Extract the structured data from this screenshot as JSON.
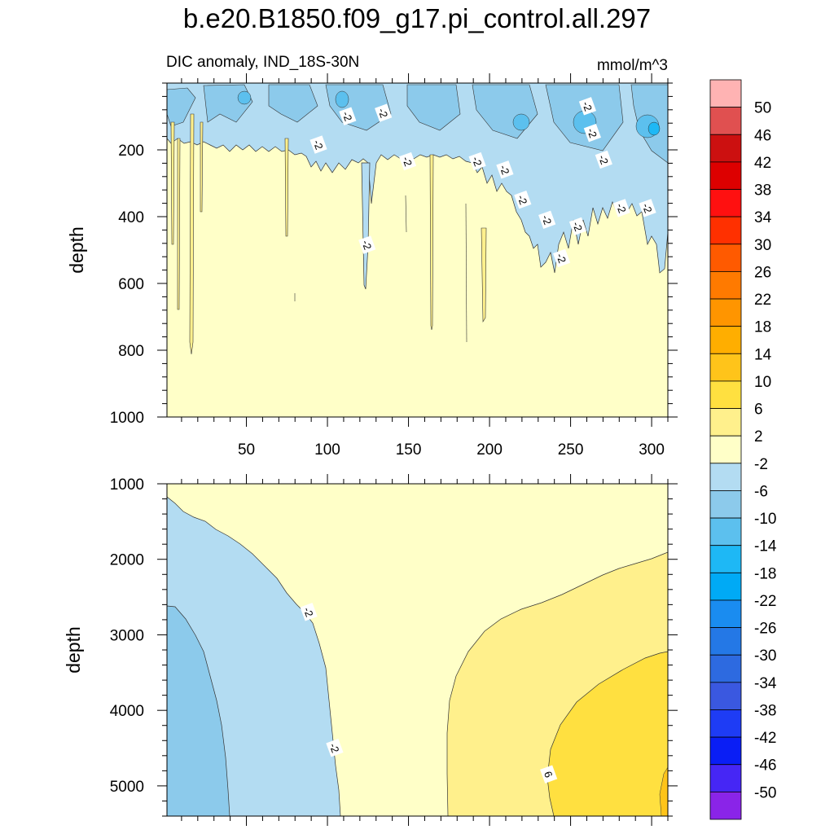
{
  "main_title": "b.e20.B1850.f09_g17.pi_control.all.297",
  "chart_data": [
    {
      "type": "contour",
      "panel": "upper",
      "left_title": "DIC anomaly, IND_18S-30N",
      "units": "mmol/m^3",
      "ylabel": "depth",
      "xlim": [
        1,
        310
      ],
      "ylim": [
        1000,
        0
      ],
      "x_ticks": [
        50,
        100,
        150,
        200,
        250,
        300
      ],
      "x_tick_labels": [
        "50",
        "100",
        "150",
        "200",
        "250",
        "300"
      ],
      "y_ticks": [
        200,
        400,
        600,
        800,
        1000
      ],
      "y_tick_labels": [
        "200",
        "400",
        "600",
        "800",
        "1000"
      ],
      "contour_labels": [
        {
          "text": "-2",
          "x": 112,
          "y": 100
        },
        {
          "text": "-2",
          "x": 134,
          "y": 90
        },
        {
          "text": "-2",
          "x": 94,
          "y": 185
        },
        {
          "text": "-2",
          "x": 149,
          "y": 235
        },
        {
          "text": "-2",
          "x": 260,
          "y": 70
        },
        {
          "text": "-2",
          "x": 263,
          "y": 150
        },
        {
          "text": "-2",
          "x": 270,
          "y": 230
        },
        {
          "text": "-2",
          "x": 192,
          "y": 235
        },
        {
          "text": "-2",
          "x": 209,
          "y": 260
        },
        {
          "text": "-2",
          "x": 220,
          "y": 350
        },
        {
          "text": "-2",
          "x": 235,
          "y": 410
        },
        {
          "text": "-2",
          "x": 254,
          "y": 430
        },
        {
          "text": "-2",
          "x": 281,
          "y": 375
        },
        {
          "text": "-2",
          "x": 297,
          "y": 375
        },
        {
          "text": "-2",
          "x": 124,
          "y": 485
        },
        {
          "text": "-2",
          "x": 244,
          "y": 525
        }
      ]
    },
    {
      "type": "contour",
      "panel": "lower",
      "ylabel": "depth",
      "xlim": [
        1,
        310
      ],
      "ylim": [
        5400,
        1000
      ],
      "y_ticks": [
        1000,
        2000,
        3000,
        4000,
        5000
      ],
      "y_tick_labels": [
        "1000",
        "2000",
        "3000",
        "4000",
        "5000"
      ],
      "contour_labels": [
        {
          "text": "-2",
          "x": 88,
          "y": 2700
        },
        {
          "text": "-2",
          "x": 104,
          "y": 4500
        },
        {
          "text": "6",
          "x": 236,
          "y": 4850
        }
      ]
    }
  ],
  "colorbar": {
    "orientation": "vertical",
    "labels": [
      "50",
      "46",
      "42",
      "38",
      "34",
      "30",
      "26",
      "22",
      "18",
      "14",
      "10",
      "6",
      "2",
      "-2",
      "-6",
      "-10",
      "-14",
      "-18",
      "-22",
      "-26",
      "-30",
      "-34",
      "-38",
      "-42",
      "-46",
      "-50"
    ],
    "colors": [
      "#ffb3b3",
      "#e05050",
      "#cc1010",
      "#dd0000",
      "#ff1010",
      "#ff3000",
      "#ff5a00",
      "#ff7a00",
      "#ff9500",
      "#ffae00",
      "#ffc41a",
      "#ffe040",
      "#fff08c",
      "#ffffc8",
      "#b3dcf2",
      "#8ccaeb",
      "#5cc0ee",
      "#1eb8f5",
      "#00aaf5",
      "#1a8cf0",
      "#2478e6",
      "#2d6ae0",
      "#3a58e0",
      "#1e3cf5",
      "#0a1ef5",
      "#4626f5",
      "#8a24e8"
    ]
  },
  "palette": {
    "bg_neutral": "#ffffc8",
    "pos_light": "#fff08c",
    "pos_mid": "#ffe040",
    "neg_light": "#b3dcf2",
    "neg_mid": "#8ccaeb",
    "neg_deep": "#5cc0ee",
    "neg_deeper": "#1eb8f5"
  }
}
